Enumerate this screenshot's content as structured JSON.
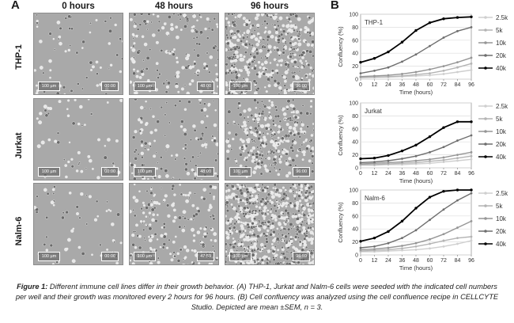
{
  "figure": {
    "panel_a": "A",
    "panel_b": "B",
    "time_columns": [
      "0 hours",
      "48 hours",
      "96 hours"
    ],
    "rows": [
      {
        "label": "THP-1",
        "stamps": [
          "00:00",
          "48:00",
          "96:00"
        ]
      },
      {
        "label": "Jurkat",
        "stamps": [
          "00:00",
          "48:00",
          "96:00"
        ]
      },
      {
        "label": "Nalm-6",
        "stamps": [
          "00:00",
          "47:59",
          "95:59"
        ]
      }
    ],
    "scale_bar": "100 µm",
    "caption_lead": "Figure 1:",
    "caption_body": " Different immune cell lines differ in their growth behavior. (A) THP-1, Jurkat and Nalm-6 cells were seeded with the indicated cell numbers per well and their growth was monitored every 2 hours for 96 hours. (B) Cell confluency was analyzed using the cell confluence recipe in CELLCYTE Studio. Depicted are mean ±SEM, n = 3."
  },
  "colors": {
    "2.5k": "#cfcfcf",
    "5k": "#b4b4b4",
    "10k": "#969696",
    "20k": "#6e6e6e",
    "40k": "#000000"
  },
  "chart_data": [
    {
      "type": "line",
      "title": "THP-1",
      "xlabel": "Time (hours)",
      "ylabel": "Confluency (%)",
      "xlim": [
        0,
        96
      ],
      "ylim": [
        0,
        100
      ],
      "xticks": [
        0,
        12,
        24,
        36,
        48,
        60,
        72,
        84,
        96
      ],
      "yticks": [
        0,
        20,
        40,
        60,
        80,
        100
      ],
      "grid": true,
      "legend": "right",
      "x": [
        0,
        12,
        24,
        36,
        48,
        60,
        72,
        84,
        96
      ],
      "series": [
        {
          "name": "2.5k",
          "values": [
            2,
            3,
            3,
            4,
            5,
            6,
            8,
            11,
            14
          ]
        },
        {
          "name": "5k",
          "values": [
            3,
            3,
            4,
            5,
            7,
            9,
            13,
            18,
            24
          ]
        },
        {
          "name": "10k",
          "values": [
            4,
            5,
            6,
            8,
            11,
            15,
            20,
            26,
            33
          ]
        },
        {
          "name": "20k",
          "values": [
            9,
            13,
            18,
            27,
            38,
            51,
            64,
            74,
            80
          ]
        },
        {
          "name": "40k",
          "values": [
            26,
            32,
            42,
            57,
            75,
            87,
            93,
            95,
            96
          ]
        }
      ]
    },
    {
      "type": "line",
      "title": "Jurkat",
      "xlabel": "Time (hours)",
      "ylabel": "Confluency (%)",
      "xlim": [
        0,
        96
      ],
      "ylim": [
        0,
        100
      ],
      "xticks": [
        0,
        12,
        24,
        36,
        48,
        60,
        72,
        84,
        96
      ],
      "yticks": [
        0,
        20,
        40,
        60,
        80,
        100
      ],
      "grid": true,
      "legend": "right",
      "x": [
        0,
        12,
        24,
        36,
        48,
        60,
        72,
        84,
        96
      ],
      "series": [
        {
          "name": "2.5k",
          "values": [
            4,
            4,
            5,
            5,
            6,
            7,
            9,
            11,
            13
          ]
        },
        {
          "name": "5k",
          "values": [
            5,
            5,
            6,
            7,
            8,
            10,
            12,
            15,
            18
          ]
        },
        {
          "name": "10k",
          "values": [
            6,
            7,
            8,
            9,
            11,
            13,
            16,
            20,
            24
          ]
        },
        {
          "name": "20k",
          "values": [
            8,
            9,
            11,
            14,
            18,
            24,
            32,
            42,
            50
          ]
        },
        {
          "name": "40k",
          "values": [
            14,
            15,
            19,
            26,
            35,
            48,
            62,
            71,
            71
          ]
        }
      ]
    },
    {
      "type": "line",
      "title": "Nalm-6",
      "xlabel": "Time (hours)",
      "ylabel": "Confluency (%)",
      "xlim": [
        0,
        96
      ],
      "ylim": [
        0,
        100
      ],
      "xticks": [
        0,
        12,
        24,
        36,
        48,
        60,
        72,
        84,
        96
      ],
      "yticks": [
        0,
        20,
        40,
        60,
        80,
        100
      ],
      "grid": true,
      "legend": "right",
      "x": [
        0,
        12,
        24,
        36,
        48,
        60,
        72,
        84,
        96
      ],
      "series": [
        {
          "name": "2.5k",
          "values": [
            5,
            5,
            6,
            7,
            8,
            10,
            13,
            17,
            22
          ]
        },
        {
          "name": "5k",
          "values": [
            6,
            7,
            8,
            10,
            13,
            17,
            22,
            26,
            28
          ]
        },
        {
          "name": "10k",
          "values": [
            8,
            9,
            11,
            14,
            18,
            24,
            32,
            42,
            52
          ]
        },
        {
          "name": "20k",
          "values": [
            11,
            13,
            18,
            26,
            38,
            54,
            70,
            84,
            95
          ]
        },
        {
          "name": "40k",
          "values": [
            21,
            26,
            36,
            52,
            72,
            89,
            98,
            100,
            100
          ]
        }
      ]
    }
  ]
}
